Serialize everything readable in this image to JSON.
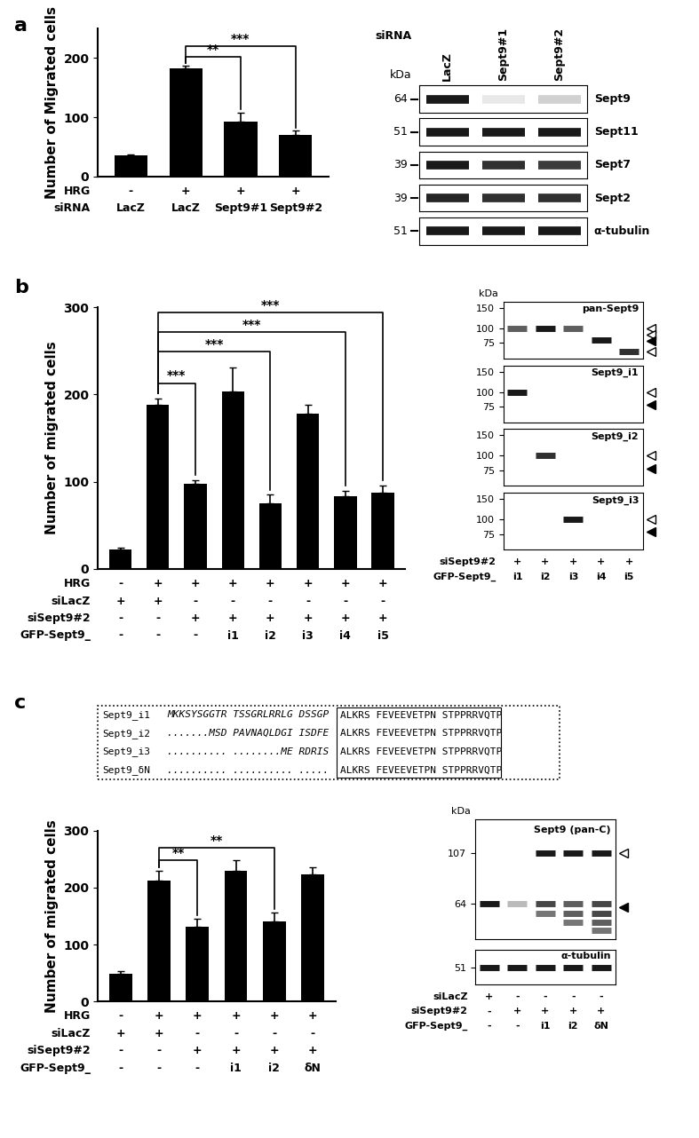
{
  "panel_labels": [
    "a",
    "b",
    "c"
  ],
  "chart_data": [
    {
      "type": "bar",
      "y_label": "Number of Migrated cells",
      "color": "#000000",
      "values": [
        35,
        183,
        93,
        70
      ],
      "errors": [
        2,
        4,
        15,
        7
      ],
      "ylim": [
        0,
        250
      ],
      "yticks": [
        0,
        100,
        200
      ],
      "conditions": [
        {
          "label": "HRG",
          "values": [
            "-",
            "+",
            "+",
            "+"
          ]
        },
        {
          "label": "siRNA",
          "values": [
            "LacZ",
            "LacZ",
            "Sept9#1",
            "Sept9#2"
          ]
        }
      ],
      "significance": [
        {
          "from": 1,
          "to": 2,
          "label": "**"
        },
        {
          "from": 1,
          "to": 3,
          "label": "***"
        }
      ]
    },
    {
      "type": "bar",
      "y_label": "Number of migrated cells",
      "color": "#000000",
      "values": [
        22,
        188,
        98,
        203,
        75,
        178,
        83,
        87
      ],
      "errors": [
        2,
        7,
        4,
        28,
        10,
        10,
        7,
        9
      ],
      "ylim": [
        0,
        300
      ],
      "yticks": [
        0,
        100,
        200,
        300
      ],
      "conditions": [
        {
          "label": "HRG",
          "values": [
            "-",
            "+",
            "+",
            "+",
            "+",
            "+",
            "+",
            "+"
          ]
        },
        {
          "label": "siLacZ",
          "values": [
            "+",
            "+",
            "-",
            "-",
            "-",
            "-",
            "-",
            "-"
          ]
        },
        {
          "label": "siSept9#2",
          "values": [
            "-",
            "-",
            "+",
            "+",
            "+",
            "+",
            "+",
            "+"
          ]
        },
        {
          "label": "GFP-Sept9_",
          "values": [
            "-",
            "-",
            "-",
            "i1",
            "i2",
            "i3",
            "i4",
            "i5"
          ]
        }
      ],
      "significance": [
        {
          "from": 1,
          "to": 2,
          "label": "***"
        },
        {
          "from": 1,
          "to": 4,
          "label": "***"
        },
        {
          "from": 1,
          "to": 6,
          "label": "***"
        },
        {
          "from": 1,
          "to": 7,
          "label": "***"
        }
      ]
    },
    {
      "type": "bar",
      "y_label": "Number of migrated cells",
      "color": "#000000",
      "values": [
        48,
        213,
        132,
        230,
        141,
        224
      ],
      "errors": [
        6,
        17,
        13,
        18,
        16,
        12
      ],
      "ylim": [
        0,
        300
      ],
      "yticks": [
        0,
        100,
        200,
        300
      ],
      "conditions": [
        {
          "label": "HRG",
          "values": [
            "-",
            "+",
            "+",
            "+",
            "+",
            "+"
          ]
        },
        {
          "label": "siLacZ",
          "values": [
            "+",
            "+",
            "-",
            "-",
            "-",
            "-"
          ]
        },
        {
          "label": "siSept9#2",
          "values": [
            "-",
            "-",
            "+",
            "+",
            "+",
            "+"
          ]
        },
        {
          "label": "GFP-Sept9_",
          "values": [
            "-",
            "-",
            "-",
            "i1",
            "i2",
            "δN"
          ]
        }
      ],
      "significance": [
        {
          "from": 1,
          "to": 2,
          "label": "**"
        },
        {
          "from": 1,
          "to": 4,
          "label": "**"
        }
      ]
    }
  ],
  "blot_a": {
    "kda_label": "kDa",
    "lane_header": "siRNA",
    "lanes": [
      "LacZ",
      "Sept9#1",
      "Sept9#2"
    ],
    "rows": [
      {
        "name": "Sept9",
        "kDa": 64,
        "bands": [
          1.0,
          0.1,
          0.2
        ]
      },
      {
        "name": "Sept11",
        "kDa": 51,
        "bands": [
          1.0,
          1.0,
          1.0
        ]
      },
      {
        "name": "Sept7",
        "kDa": 39,
        "bands": [
          1.0,
          0.9,
          0.85
        ]
      },
      {
        "name": "Sept2",
        "kDa": 39,
        "bands": [
          0.95,
          0.9,
          0.9
        ]
      },
      {
        "name": "α-tubulin",
        "kDa": 51,
        "bands": [
          1.0,
          1.0,
          1.0
        ]
      }
    ]
  },
  "blot_b": {
    "kda_label": "kDa",
    "log": true,
    "panels": [
      {
        "name": "pan-Sept9",
        "ylim": [
          55,
          170
        ],
        "yticks": [
          75,
          100,
          150
        ],
        "bands": [
          {
            "lane": 0,
            "kDa": 100,
            "intensity": 0.7
          },
          {
            "lane": 1,
            "kDa": 100,
            "intensity": 1.0
          },
          {
            "lane": 2,
            "kDa": 100,
            "intensity": 0.7
          },
          {
            "lane": 3,
            "kDa": 80,
            "intensity": 1.0
          },
          {
            "lane": 4,
            "kDa": 63,
            "intensity": 0.9
          }
        ],
        "arrowheads": [
          {
            "kDa": 100,
            "filled": false
          },
          {
            "kDa": 88,
            "filled": false
          },
          {
            "kDa": 78,
            "filled": true
          },
          {
            "kDa": 63,
            "filled": false
          }
        ]
      },
      {
        "name": "Sept9_i1",
        "ylim": [
          55,
          170
        ],
        "yticks": [
          75,
          100,
          150
        ],
        "bands": [
          {
            "lane": 0,
            "kDa": 100,
            "intensity": 1.0
          }
        ],
        "arrowheads": [
          {
            "kDa": 100,
            "filled": false
          },
          {
            "kDa": 78,
            "filled": true
          }
        ]
      },
      {
        "name": "Sept9_i2",
        "ylim": [
          55,
          170
        ],
        "yticks": [
          75,
          100,
          150
        ],
        "bands": [
          {
            "lane": 1,
            "kDa": 100,
            "intensity": 0.9
          }
        ],
        "arrowheads": [
          {
            "kDa": 100,
            "filled": false
          },
          {
            "kDa": 78,
            "filled": true
          }
        ]
      },
      {
        "name": "Sept9_i3",
        "ylim": [
          55,
          170
        ],
        "yticks": [
          75,
          100,
          150
        ],
        "bands": [
          {
            "lane": 2,
            "kDa": 100,
            "intensity": 1.0
          }
        ],
        "arrowheads": [
          {
            "kDa": 100,
            "filled": false
          },
          {
            "kDa": 78,
            "filled": true
          }
        ]
      }
    ],
    "conditions": [
      {
        "label": "siSept9#2",
        "values": [
          "+",
          "+",
          "+",
          "+",
          "+"
        ]
      },
      {
        "label": "GFP-Sept9_",
        "values": [
          "i1",
          "i2",
          "i3",
          "i4",
          "i5"
        ]
      }
    ]
  },
  "blot_c": {
    "kda_label": "kDa",
    "log": true,
    "panels": [
      {
        "name": "Sept9 (pan-C)",
        "ylim": [
          45,
          150
        ],
        "yticks": [
          64,
          107
        ],
        "bands": [
          {
            "lane": 0,
            "kDa": 64,
            "intensity": 1.0
          },
          {
            "lane": 1,
            "kDa": 64,
            "intensity": 0.3
          },
          {
            "lane": 2,
            "kDa": 107,
            "intensity": 1.0
          },
          {
            "lane": 2,
            "kDa": 64,
            "intensity": 0.8
          },
          {
            "lane": 2,
            "kDa": 58,
            "intensity": 0.6
          },
          {
            "lane": 3,
            "kDa": 107,
            "intensity": 1.0
          },
          {
            "lane": 3,
            "kDa": 64,
            "intensity": 0.7
          },
          {
            "lane": 3,
            "kDa": 58,
            "intensity": 0.7
          },
          {
            "lane": 3,
            "kDa": 53,
            "intensity": 0.6
          },
          {
            "lane": 4,
            "kDa": 107,
            "intensity": 1.0
          },
          {
            "lane": 4,
            "kDa": 64,
            "intensity": 0.8
          },
          {
            "lane": 4,
            "kDa": 58,
            "intensity": 0.8
          },
          {
            "lane": 4,
            "kDa": 53,
            "intensity": 0.7
          },
          {
            "lane": 4,
            "kDa": 49,
            "intensity": 0.6
          }
        ],
        "arrowheads": [
          {
            "kDa": 107,
            "filled": false
          },
          {
            "kDa": 62,
            "filled": true
          }
        ]
      },
      {
        "name": "α-tubulin",
        "ylim": [
          45,
          58
        ],
        "yticks": [
          51
        ],
        "bands": [
          {
            "lane": 0,
            "kDa": 51,
            "intensity": 1.0
          },
          {
            "lane": 1,
            "kDa": 51,
            "intensity": 1.0
          },
          {
            "lane": 2,
            "kDa": 51,
            "intensity": 1.0
          },
          {
            "lane": 3,
            "kDa": 51,
            "intensity": 1.0
          },
          {
            "lane": 4,
            "kDa": 51,
            "intensity": 1.0
          }
        ],
        "arrowheads": []
      }
    ],
    "conditions": [
      {
        "label": "siLacZ",
        "values": [
          "+",
          "-",
          "-",
          "-",
          "-"
        ]
      },
      {
        "label": "siSept9#2",
        "values": [
          "-",
          "+",
          "+",
          "+",
          "+"
        ]
      },
      {
        "label": "GFP-Sept9_",
        "values": [
          "-",
          "-",
          "i1",
          "i2",
          "δN"
        ]
      }
    ]
  },
  "alignment": {
    "rows": [
      {
        "name": "Sept9_i1",
        "variable": "MKKSYSGGTR TSSGRLRRLG DSSGP",
        "conserved": "ALKRS FEVEEVETPN STPPRRVQTP"
      },
      {
        "name": "Sept9_i2",
        "variable": ".......MSD PAVNAQLDGI ISDFE",
        "conserved": "ALKRS FEVEEVETPN STPPRRVQTP"
      },
      {
        "name": "Sept9_i3",
        "variable": ".......... ........ME RDRIS",
        "conserved": "ALKRS FEVEEVETPN STPPRRVQTP"
      },
      {
        "name": "Sept9_δN",
        "variable": ".......... .......... .....",
        "conserved": "ALKRS FEVEEVETPN STPPRRVQTP"
      }
    ]
  }
}
